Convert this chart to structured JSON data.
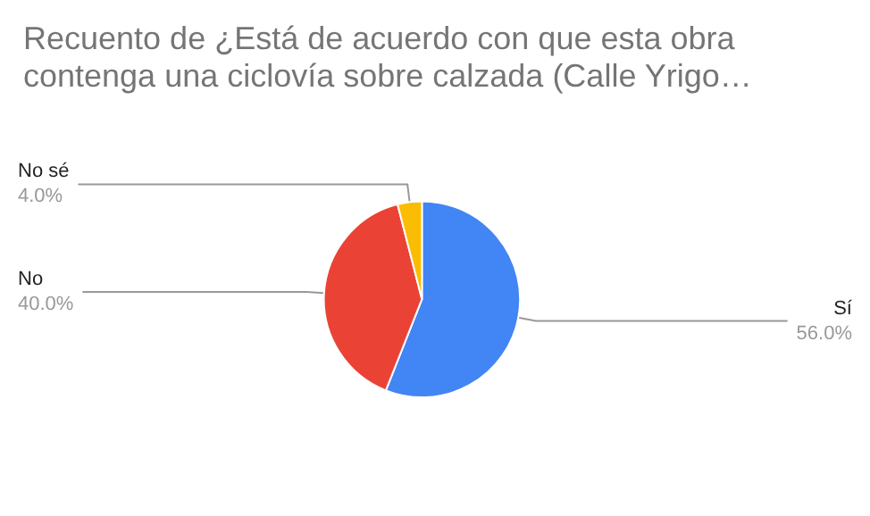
{
  "chart_data": {
    "type": "pie",
    "title": "Recuento de ¿Está de acuerdo con que esta obra contenga una ciclovía sobre calzada (Calle Yrigo…",
    "categories": [
      "Sí",
      "No",
      "No sé"
    ],
    "values": [
      56,
      40,
      4
    ],
    "colors": [
      "#4285f4",
      "#ea4335",
      "#fbbc04"
    ],
    "value_labels": [
      "56.0%",
      "40.0%",
      "4.0%"
    ],
    "legend": false
  }
}
